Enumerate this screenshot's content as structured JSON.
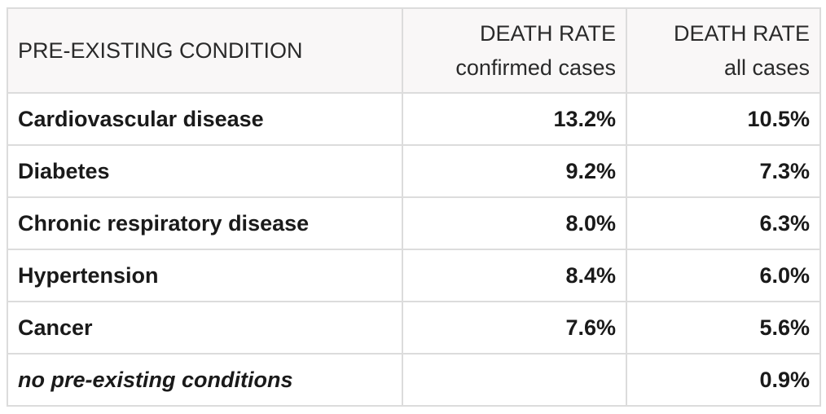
{
  "header": {
    "col1": "PRE-EXISTING CONDITION",
    "col2_line1": "DEATH RATE",
    "col2_line2": "confirmed cases",
    "col3_line1": "DEATH RATE",
    "col3_line2": "all cases"
  },
  "rows": [
    {
      "condition": "Cardiovascular disease",
      "confirmed": "13.2%",
      "all": "10.5%"
    },
    {
      "condition": "Diabetes",
      "confirmed": "9.2%",
      "all": "7.3%"
    },
    {
      "condition": "Chronic respiratory disease",
      "confirmed": "8.0%",
      "all": "6.3%"
    },
    {
      "condition": "Hypertension",
      "confirmed": "8.4%",
      "all": "6.0%"
    },
    {
      "condition": "Cancer",
      "confirmed": "7.6%",
      "all": "5.6%"
    },
    {
      "condition": "no pre-existing conditions",
      "confirmed": "",
      "all": "0.9%"
    }
  ]
}
